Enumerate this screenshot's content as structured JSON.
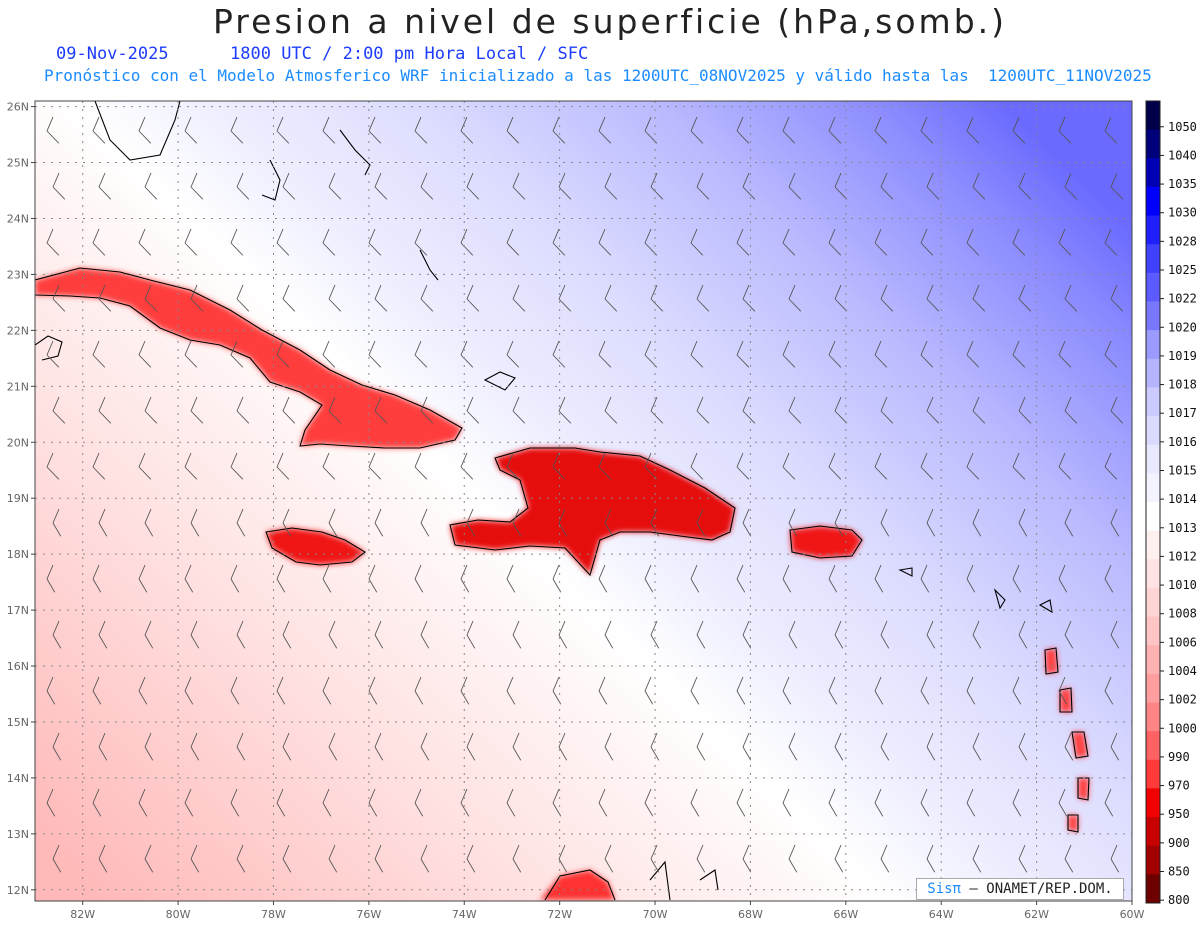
{
  "title": "Presion a nivel de superficie (hPa,somb.)",
  "date": "09-Nov-2025",
  "valid_time": "1800 UTC / 2:00 pm Hora Local / SFC",
  "forecast_line": "Pronóstico con el Modelo Atmosferico WRF inicializado a las 1200UTC_08NOV2025 y válido hasta las  1200UTC_11NOV2025",
  "credit": {
    "brand": "Sisπ",
    "org": "– ONAMET/REP.DOM."
  },
  "lat_labels": [
    "26N",
    "25N",
    "24N",
    "23N",
    "22N",
    "21N",
    "20N",
    "19N",
    "18N",
    "17N",
    "16N",
    "15N",
    "14N",
    "13N",
    "12N"
  ],
  "lon_labels": [
    "82W",
    "80W",
    "78W",
    "76W",
    "74W",
    "72W",
    "70W",
    "68W",
    "66W",
    "64W",
    "62W",
    "60W"
  ],
  "colorbar": {
    "levels": [
      "1050",
      "1040",
      "1035",
      "1030",
      "1028",
      "1025",
      "1022",
      "1020",
      "1019",
      "1018",
      "1017",
      "1016",
      "1015",
      "1014",
      "1013",
      "1012",
      "1010",
      "1008",
      "1006",
      "1004",
      "1002",
      "1000",
      "990",
      "970",
      "950",
      "900",
      "850",
      "800"
    ],
    "colors": [
      "#00004a",
      "#00007a",
      "#0000b4",
      "#0000ff",
      "#2020ff",
      "#4040ff",
      "#5b5bff",
      "#7878ff",
      "#9a9aff",
      "#b4b4ff",
      "#cbcbff",
      "#dadaff",
      "#e8e8ff",
      "#f3f3ff",
      "#ffffff",
      "#fff0f0",
      "#ffe2e2",
      "#ffd4d4",
      "#ffc4c4",
      "#ffb2b2",
      "#ff9e9e",
      "#ff8585",
      "#ff6262",
      "#ff3a3a",
      "#f00000",
      "#c80000",
      "#a00000",
      "#6e0000"
    ]
  },
  "colors": {
    "land_pressure": "#ff2a2a",
    "grid": "#888888",
    "barb": "#555555"
  },
  "regions": [
    "Cuba",
    "Jamaica",
    "Hispaniola",
    "Puerto Rico",
    "Lesser Antilles",
    "Bahamas",
    "Florida"
  ]
}
